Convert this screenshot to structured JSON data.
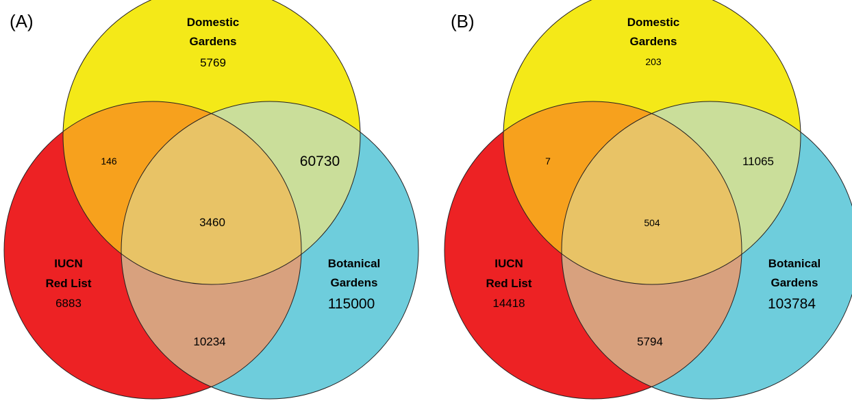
{
  "colors": {
    "domestic": "#f4e918",
    "iucn": "#ed2224",
    "botanical": "#6ecddc",
    "domestic_iucn": "#f7a11d",
    "domestic_botanical": "#cade9a",
    "iucn_botanical": "#d8a17e",
    "all_three": "#e8c366",
    "outline": "#231f20"
  },
  "panels": [
    {
      "label": "(A)",
      "sets": {
        "domestic": {
          "label_line1": "Domestic",
          "label_line2": "Gardens",
          "count": "5769"
        },
        "iucn": {
          "label_line1": "IUCN",
          "label_line2": "Red List",
          "count": "6883"
        },
        "botanical": {
          "label_line1": "Botanical",
          "label_line2": "Gardens",
          "count": "115000"
        }
      },
      "overlaps": {
        "domestic_iucn": "146",
        "domestic_botanical": "60730",
        "iucn_botanical": "10234",
        "all_three": "3460"
      }
    },
    {
      "label": "(B)",
      "sets": {
        "domestic": {
          "label_line1": "Domestic",
          "label_line2": "Gardens",
          "count": "203"
        },
        "iucn": {
          "label_line1": "IUCN",
          "label_line2": "Red List",
          "count": "14418"
        },
        "botanical": {
          "label_line1": "Botanical",
          "label_line2": "Gardens",
          "count": "103784"
        }
      },
      "overlaps": {
        "domestic_iucn": "7",
        "domestic_botanical": "11065",
        "iucn_botanical": "5794",
        "all_three": "504"
      }
    }
  ]
}
